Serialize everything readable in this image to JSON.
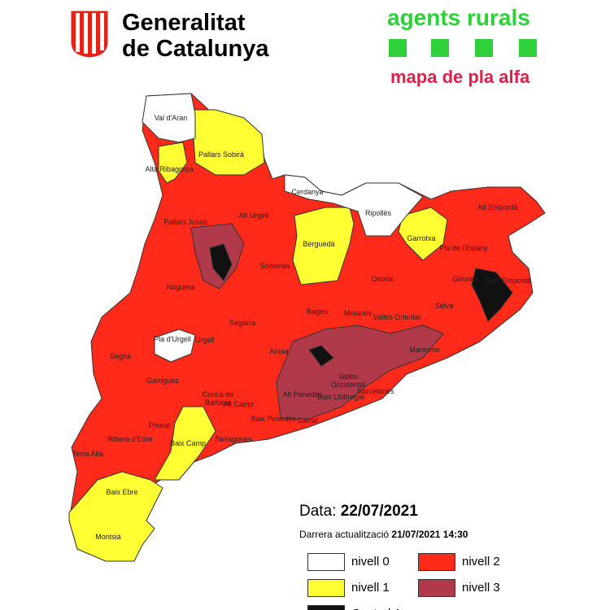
{
  "header": {
    "org_line1": "Generalitat",
    "org_line2": "de Catalunya",
    "brand": "agents rurals",
    "subtitle": "mapa de pla alfa"
  },
  "comarques": [
    "Val d'Aran",
    "Pallars Sobirà",
    "Alta Ribagorça",
    "Pallars Jussà",
    "Alt Urgell",
    "Cerdanya",
    "Ripollès",
    "Alt Empordà",
    "Garrotxa",
    "Berguedà",
    "Pla de l'Estany",
    "Solsonès",
    "Noguera",
    "Gironès",
    "Baix Empordà",
    "Osona",
    "Segarra",
    "Bages",
    "Moianès",
    "Selva",
    "Pla d'Urgell",
    "Urgell",
    "Segrià",
    "Vallès Oriental",
    "Anoia",
    "Vallès Occidental",
    "Maresme",
    "Garrigues",
    "Conca de Barberà",
    "Alt Camp",
    "Alt Penedès",
    "Baix Llobregat",
    "Barcelonès",
    "Priorat",
    "Baix Penedès",
    "Garraf",
    "Ribera d'Ebre",
    "Tarragonès",
    "Baix Camp",
    "Terra Alta",
    "Baix Ebre",
    "Montsià"
  ],
  "info": {
    "date_label": "Data:",
    "date": "22/07/2021",
    "update_label": "Darrera actualització",
    "update": "21/07/2021 14:30"
  },
  "legend": [
    {
      "label": "nivell 0",
      "color": "#ffffff"
    },
    {
      "label": "nivell 1",
      "color": "#ffff33"
    },
    {
      "label": "nivell 2",
      "color": "#ff2a1a"
    },
    {
      "label": "nivell 3",
      "color": "#b0394a"
    },
    {
      "label": "Control Accessos",
      "color": "#111111"
    }
  ]
}
